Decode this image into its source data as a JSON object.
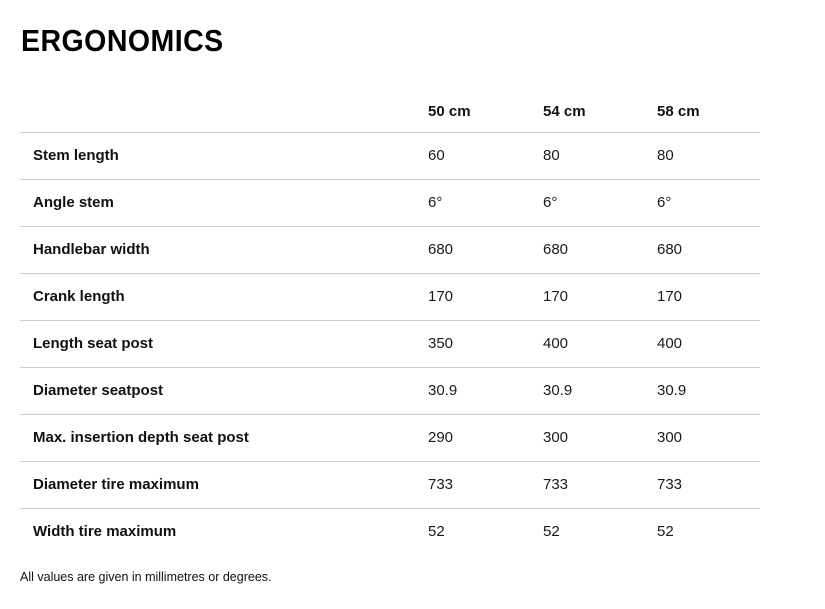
{
  "title": "ERGONOMICS",
  "table": {
    "columns": [
      "50 cm",
      "54 cm",
      "58 cm"
    ],
    "rows": [
      {
        "label": "Stem length",
        "values": [
          "60",
          "80",
          "80"
        ]
      },
      {
        "label": "Angle stem",
        "values": [
          "6°",
          "6°",
          "6°"
        ]
      },
      {
        "label": "Handlebar width",
        "values": [
          "680",
          "680",
          "680"
        ]
      },
      {
        "label": "Crank length",
        "values": [
          "170",
          "170",
          "170"
        ]
      },
      {
        "label": "Length seat post",
        "values": [
          "350",
          "400",
          "400"
        ]
      },
      {
        "label": "Diameter seatpost",
        "values": [
          "30.9",
          "30.9",
          "30.9"
        ]
      },
      {
        "label": "Max. insertion depth seat post",
        "values": [
          "290",
          "300",
          "300"
        ]
      },
      {
        "label": "Diameter tire maximum",
        "values": [
          "733",
          "733",
          "733"
        ]
      },
      {
        "label": "Width tire maximum",
        "values": [
          "52",
          "52",
          "52"
        ]
      }
    ]
  },
  "footnote": "All values are given in millimetres or degrees.",
  "colors": {
    "text": "#111111",
    "divider": "#cccccc",
    "background": "#ffffff"
  }
}
